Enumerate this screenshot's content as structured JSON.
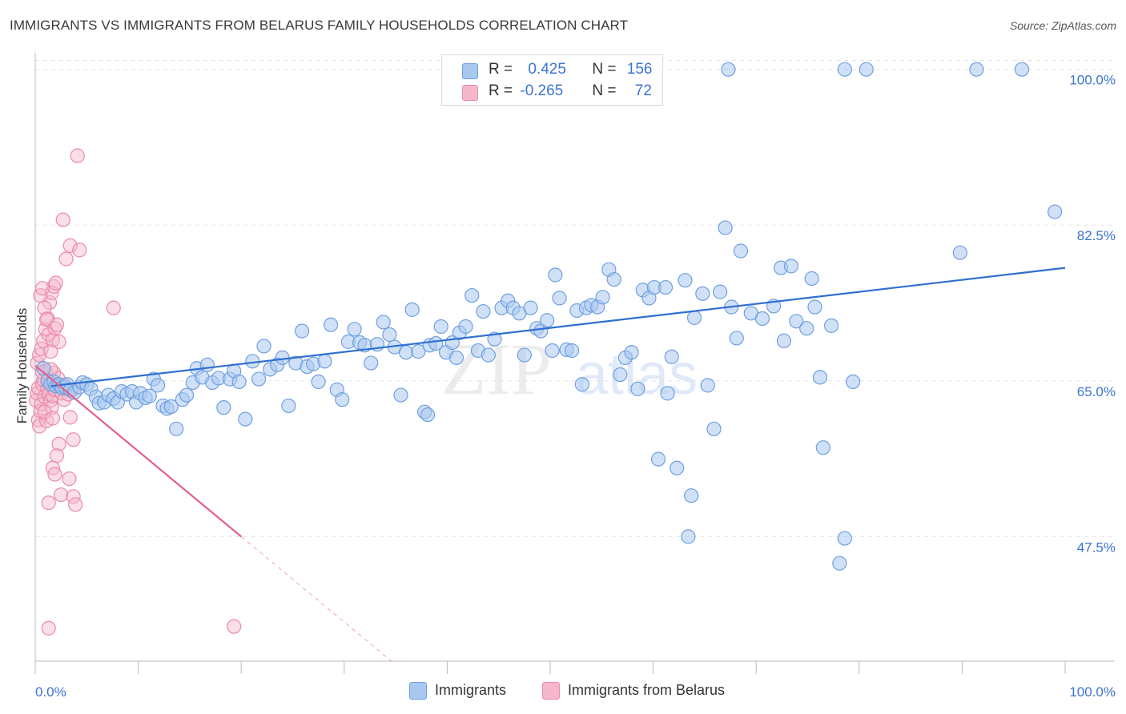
{
  "title": "IMMIGRANTS VS IMMIGRANTS FROM BELARUS FAMILY HOUSEHOLDS CORRELATION CHART",
  "source": "Source: ZipAtlas.com",
  "watermark": {
    "zip": "ZIP",
    "atlas": "atlas"
  },
  "colors": {
    "blue_fill": "#a9c8f0",
    "blue_stroke": "#6f9fe0",
    "blue_line": "#2f6fd1",
    "pink_fill": "#f5b8cb",
    "pink_stroke": "#eb8aa8",
    "pink_line": "#e2608e",
    "axis_label_blue": "#3b74d1",
    "grid": "#e2e2e2"
  },
  "legend": {
    "rows": [
      {
        "r_label": "R = ",
        "r_value": "0.425",
        "n_label": "N = ",
        "n_value": "156"
      },
      {
        "r_label": "R = ",
        "r_value": "-0.265",
        "n_label": "N = ",
        "n_value": "72"
      }
    ]
  },
  "bottom_legend": [
    "Immigrants",
    "Immigrants from Belarus"
  ],
  "chart_data": {
    "type": "scatter",
    "title": "IMMIGRANTS VS IMMIGRANTS FROM BELARUS FAMILY HOUSEHOLDS CORRELATION CHART",
    "xlabel": "",
    "ylabel": "Family Households",
    "xlim": [
      0,
      100
    ],
    "ylim": [
      33.5,
      101.5
    ],
    "x_tick_labels": [
      "0.0%",
      "100.0%"
    ],
    "y_ticks": [
      47.5,
      65.0,
      82.5,
      100.0
    ],
    "y_tick_labels": [
      "47.5%",
      "65.0%",
      "82.5%",
      "100.0%"
    ],
    "grid": true,
    "series": [
      {
        "name": "Immigrants",
        "color": "#a9c8f0",
        "r": 0.425,
        "n": 156,
        "trend": {
          "x": [
            1.5,
            100
          ],
          "y": [
            64.4,
            77.7
          ]
        },
        "points": [
          [
            0.8,
            66.4
          ],
          [
            1.2,
            65.0
          ],
          [
            1.5,
            64.6
          ],
          [
            1.8,
            64.9
          ],
          [
            2.0,
            64.4
          ],
          [
            2.3,
            64.6
          ],
          [
            2.6,
            64.2
          ],
          [
            2.9,
            64.3
          ],
          [
            3.1,
            64.6
          ],
          [
            3.4,
            64.0
          ],
          [
            3.8,
            63.7
          ],
          [
            4.3,
            64.3
          ],
          [
            4.6,
            64.8
          ],
          [
            5.0,
            64.6
          ],
          [
            5.4,
            64.1
          ],
          [
            5.9,
            63.2
          ],
          [
            6.2,
            62.5
          ],
          [
            6.7,
            62.6
          ],
          [
            7.1,
            63.4
          ],
          [
            7.6,
            63.0
          ],
          [
            8.0,
            62.6
          ],
          [
            8.4,
            63.8
          ],
          [
            8.9,
            63.5
          ],
          [
            9.4,
            63.8
          ],
          [
            9.8,
            62.6
          ],
          [
            10.2,
            63.6
          ],
          [
            10.7,
            63.1
          ],
          [
            11.1,
            63.3
          ],
          [
            11.5,
            65.2
          ],
          [
            11.9,
            64.5
          ],
          [
            12.4,
            62.2
          ],
          [
            12.8,
            61.9
          ],
          [
            13.2,
            62.1
          ],
          [
            13.7,
            59.6
          ],
          [
            14.3,
            62.9
          ],
          [
            14.7,
            63.4
          ],
          [
            15.3,
            64.8
          ],
          [
            15.7,
            66.4
          ],
          [
            16.2,
            65.4
          ],
          [
            16.7,
            66.8
          ],
          [
            17.2,
            64.8
          ],
          [
            17.8,
            65.3
          ],
          [
            18.3,
            62.0
          ],
          [
            18.9,
            65.2
          ],
          [
            19.3,
            66.1
          ],
          [
            19.8,
            64.9
          ],
          [
            20.4,
            60.7
          ],
          [
            21.1,
            67.2
          ],
          [
            21.7,
            65.2
          ],
          [
            22.2,
            68.9
          ],
          [
            22.8,
            66.3
          ],
          [
            23.5,
            66.8
          ],
          [
            24.0,
            67.6
          ],
          [
            24.6,
            62.2
          ],
          [
            25.3,
            67.0
          ],
          [
            25.9,
            70.6
          ],
          [
            26.4,
            66.6
          ],
          [
            27.0,
            66.9
          ],
          [
            27.5,
            64.9
          ],
          [
            28.1,
            67.2
          ],
          [
            28.7,
            71.3
          ],
          [
            29.3,
            64.0
          ],
          [
            29.8,
            62.9
          ],
          [
            30.4,
            69.4
          ],
          [
            31.0,
            70.8
          ],
          [
            31.5,
            69.3
          ],
          [
            32.0,
            69.0
          ],
          [
            32.6,
            67.0
          ],
          [
            33.2,
            69.1
          ],
          [
            33.8,
            71.6
          ],
          [
            34.4,
            70.2
          ],
          [
            34.9,
            68.8
          ],
          [
            35.5,
            63.4
          ],
          [
            36.0,
            68.2
          ],
          [
            36.6,
            73.0
          ],
          [
            37.2,
            68.3
          ],
          [
            37.8,
            61.5
          ],
          [
            38.1,
            61.2
          ],
          [
            38.3,
            69.0
          ],
          [
            38.9,
            69.2
          ],
          [
            39.4,
            71.1
          ],
          [
            39.9,
            68.2
          ],
          [
            40.5,
            69.3
          ],
          [
            40.9,
            67.6
          ],
          [
            41.2,
            70.4
          ],
          [
            41.8,
            71.1
          ],
          [
            42.4,
            74.6
          ],
          [
            43.0,
            68.4
          ],
          [
            43.5,
            72.8
          ],
          [
            44.0,
            67.9
          ],
          [
            44.6,
            69.7
          ],
          [
            45.3,
            73.2
          ],
          [
            45.9,
            74.0
          ],
          [
            46.4,
            73.2
          ],
          [
            47.0,
            72.6
          ],
          [
            47.5,
            67.9
          ],
          [
            48.1,
            73.2
          ],
          [
            48.7,
            70.9
          ],
          [
            49.1,
            70.6
          ],
          [
            49.7,
            71.8
          ],
          [
            50.2,
            68.4
          ],
          [
            50.5,
            76.9
          ],
          [
            50.9,
            74.3
          ],
          [
            51.6,
            68.5
          ],
          [
            52.1,
            68.4
          ],
          [
            52.6,
            72.9
          ],
          [
            53.1,
            64.6
          ],
          [
            53.5,
            73.2
          ],
          [
            54.0,
            73.5
          ],
          [
            54.6,
            73.3
          ],
          [
            55.1,
            74.4
          ],
          [
            55.7,
            77.5
          ],
          [
            56.2,
            76.4
          ],
          [
            56.8,
            65.7
          ],
          [
            57.3,
            67.6
          ],
          [
            57.9,
            68.2
          ],
          [
            58.5,
            64.1
          ],
          [
            59.0,
            75.2
          ],
          [
            59.6,
            74.3
          ],
          [
            60.1,
            75.5
          ],
          [
            60.5,
            56.2
          ],
          [
            61.2,
            75.5
          ],
          [
            61.4,
            63.6
          ],
          [
            61.8,
            67.7
          ],
          [
            62.3,
            55.2
          ],
          [
            63.1,
            76.3
          ],
          [
            63.7,
            52.1
          ],
          [
            64.0,
            72.1
          ],
          [
            64.8,
            74.8
          ],
          [
            65.3,
            64.5
          ],
          [
            65.9,
            59.6
          ],
          [
            66.5,
            75.0
          ],
          [
            67.0,
            82.2
          ],
          [
            67.6,
            73.3
          ],
          [
            68.1,
            69.8
          ],
          [
            68.5,
            79.6
          ],
          [
            69.5,
            72.6
          ],
          [
            70.6,
            72.0
          ],
          [
            71.7,
            73.4
          ],
          [
            72.4,
            77.7
          ],
          [
            72.7,
            69.5
          ],
          [
            73.4,
            77.9
          ],
          [
            73.9,
            71.7
          ],
          [
            74.9,
            70.9
          ],
          [
            75.4,
            76.5
          ],
          [
            75.7,
            73.3
          ],
          [
            76.2,
            65.4
          ],
          [
            76.5,
            57.5
          ],
          [
            77.3,
            71.2
          ],
          [
            78.1,
            44.5
          ],
          [
            78.6,
            47.3
          ],
          [
            79.4,
            64.9
          ],
          [
            89.8,
            79.4
          ],
          [
            99.0,
            84.0
          ],
          [
            67.3,
            100.0
          ],
          [
            78.6,
            100.0
          ],
          [
            80.7,
            100.0
          ],
          [
            91.4,
            100.0
          ],
          [
            95.8,
            100.0
          ],
          [
            63.4,
            47.5
          ]
        ]
      },
      {
        "name": "Immigrants from Belarus",
        "color": "#f5b8cb",
        "r": -0.265,
        "n": 72,
        "trend": {
          "x": [
            0.0,
            20.0
          ],
          "y": [
            66.7,
            47.5
          ]
        },
        "trend_extension": {
          "x": [
            20.0,
            40.0
          ],
          "y": [
            47.5,
            28.3
          ]
        },
        "points": [
          [
            0.1,
            62.8
          ],
          [
            0.2,
            63.6
          ],
          [
            0.3,
            64.2
          ],
          [
            0.3,
            60.6
          ],
          [
            0.4,
            59.9
          ],
          [
            0.5,
            61.6
          ],
          [
            0.6,
            62.4
          ],
          [
            0.7,
            64.6
          ],
          [
            0.8,
            65.1
          ],
          [
            0.9,
            63.2
          ],
          [
            1.0,
            66.1
          ],
          [
            1.1,
            60.5
          ],
          [
            1.2,
            64.1
          ],
          [
            1.3,
            63.5
          ],
          [
            1.4,
            64.8
          ],
          [
            1.5,
            62.8
          ],
          [
            1.6,
            62.0
          ],
          [
            1.7,
            63.3
          ],
          [
            1.8,
            65.9
          ],
          [
            1.9,
            64.0
          ],
          [
            0.2,
            67.0
          ],
          [
            0.4,
            67.9
          ],
          [
            0.6,
            68.6
          ],
          [
            0.8,
            69.5
          ],
          [
            1.0,
            70.8
          ],
          [
            1.2,
            72.0
          ],
          [
            1.4,
            73.8
          ],
          [
            1.6,
            74.9
          ],
          [
            1.8,
            75.6
          ],
          [
            2.0,
            76.0
          ],
          [
            0.5,
            74.6
          ],
          [
            0.7,
            75.4
          ],
          [
            0.9,
            73.2
          ],
          [
            1.1,
            71.9
          ],
          [
            1.3,
            70.2
          ],
          [
            1.5,
            68.3
          ],
          [
            1.7,
            69.6
          ],
          [
            1.9,
            70.9
          ],
          [
            2.1,
            71.3
          ],
          [
            2.3,
            69.4
          ],
          [
            2.0,
            64.6
          ],
          [
            2.2,
            65.3
          ],
          [
            2.4,
            64.4
          ],
          [
            2.6,
            63.6
          ],
          [
            2.8,
            62.9
          ],
          [
            3.0,
            64.1
          ],
          [
            3.2,
            63.5
          ],
          [
            3.4,
            60.9
          ],
          [
            3.7,
            58.4
          ],
          [
            2.3,
            57.9
          ],
          [
            2.1,
            56.6
          ],
          [
            1.7,
            55.2
          ],
          [
            1.9,
            54.5
          ],
          [
            3.3,
            54.0
          ],
          [
            2.5,
            52.2
          ],
          [
            3.7,
            52.0
          ],
          [
            3.9,
            51.1
          ],
          [
            1.3,
            51.3
          ],
          [
            2.7,
            83.1
          ],
          [
            3.4,
            80.2
          ],
          [
            4.3,
            79.7
          ],
          [
            3.0,
            78.7
          ],
          [
            4.1,
            90.3
          ],
          [
            7.6,
            73.2
          ],
          [
            1.3,
            37.2
          ],
          [
            19.3,
            37.4
          ],
          [
            0.7,
            66.0
          ],
          [
            1.5,
            66.3
          ],
          [
            0.9,
            61.5
          ],
          [
            1.7,
            60.8
          ],
          [
            2.8,
            64.5
          ],
          [
            3.6,
            64.0
          ]
        ]
      }
    ]
  }
}
